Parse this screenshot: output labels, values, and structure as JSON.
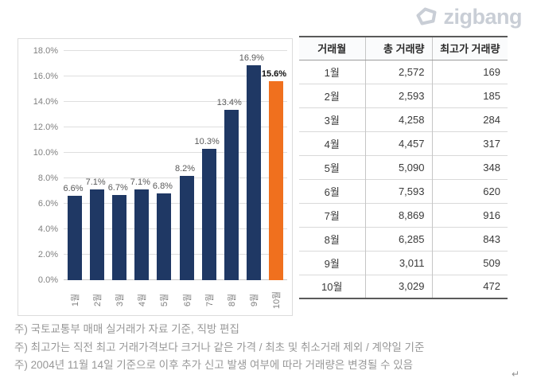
{
  "logo": {
    "text": "zigbang",
    "color": "#c9ced6"
  },
  "chart_data": {
    "type": "bar",
    "title": "",
    "xlabel": "",
    "ylabel": "",
    "categories": [
      "1월",
      "2월",
      "3월",
      "4월",
      "5월",
      "6월",
      "7월",
      "8월",
      "9월",
      "10월"
    ],
    "values": [
      6.6,
      7.1,
      6.7,
      7.1,
      6.8,
      8.2,
      10.3,
      13.4,
      16.9,
      15.6
    ],
    "value_labels": [
      "6.6%",
      "7.1%",
      "6.7%",
      "7.1%",
      "6.8%",
      "8.2%",
      "10.3%",
      "13.4%",
      "16.9%",
      "15.6%"
    ],
    "highlight_index": 9,
    "ylim": [
      0,
      18
    ],
    "ytick_step": 2,
    "yticks": [
      "0.0%",
      "2.0%",
      "4.0%",
      "6.0%",
      "8.0%",
      "10.0%",
      "12.0%",
      "14.0%",
      "16.0%",
      "18.0%"
    ],
    "grid": true,
    "legend_position": "none",
    "colors": {
      "bar": "#1F3864",
      "highlight": "#F0701E",
      "grid": "#DEDEDE",
      "axis_text": "#7F7F7F",
      "label_text": "#595959"
    }
  },
  "table": {
    "columns": [
      "거래월",
      "총 거래량",
      "최고가 거래량"
    ],
    "rows": [
      [
        "1월",
        "2,572",
        "169"
      ],
      [
        "2월",
        "2,593",
        "185"
      ],
      [
        "3월",
        "4,258",
        "284"
      ],
      [
        "4월",
        "4,457",
        "317"
      ],
      [
        "5월",
        "5,090",
        "348"
      ],
      [
        "6월",
        "7,593",
        "620"
      ],
      [
        "7월",
        "8,869",
        "916"
      ],
      [
        "8월",
        "6,285",
        "843"
      ],
      [
        "9월",
        "3,011",
        "509"
      ],
      [
        "10월",
        "3,029",
        "472"
      ]
    ]
  },
  "notes": [
    "주) 국토교통부 매매 실거래가 자료 기준, 직방 편집",
    "주) 최고가는 직전 최고 거래가격보다 크거나 같은 가격 / 최초 및 취소거래 제외  / 계약일 기준",
    "주) 2004년 11월 14일 기준으로 이후 추가 신고 발생 여부에 따라 거래량은 변경될 수 있음"
  ],
  "misc": {
    "return_mark": "↵"
  }
}
